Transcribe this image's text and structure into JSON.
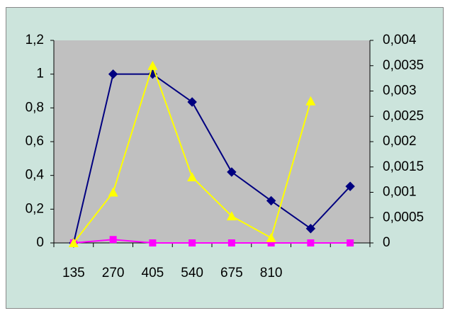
{
  "chart_data": {
    "type": "line",
    "categories": [
      "135",
      "270",
      "405",
      "540",
      "675",
      "810",
      null,
      null
    ],
    "ylim": [
      0,
      1.2
    ],
    "yticks": [
      0,
      {
        "value": 0.2,
        "label": "0,2"
      },
      {
        "value": 0.4,
        "label": "0,4"
      },
      {
        "value": 0.6,
        "label": "0,6"
      },
      {
        "value": 0.8,
        "label": "0,8"
      },
      1,
      {
        "value": 1.2,
        "label": "1,2"
      }
    ],
    "y2lim": [
      0,
      0.004
    ],
    "y2ticks": [
      0,
      {
        "value": 0.0005,
        "label": "0,0005"
      },
      {
        "value": 0.001,
        "label": "0,001"
      },
      {
        "value": 0.0015,
        "label": "0,0015"
      },
      {
        "value": 0.002,
        "label": "0,002"
      },
      {
        "value": 0.0025,
        "label": "0,0025"
      },
      {
        "value": 0.003,
        "label": "0,003"
      },
      {
        "value": 0.0035,
        "label": "0,0035"
      },
      {
        "value": 0.004,
        "label": "0,004"
      }
    ],
    "series": [
      {
        "color": "#000080",
        "marker": "diamond",
        "values": [
          0,
          1.0,
          1.0,
          0.835,
          0.42,
          0.25,
          0.085,
          0.335
        ]
      },
      {
        "color": "#ff00ff",
        "marker": "square",
        "values": [
          0,
          0.02,
          0,
          0,
          0,
          0,
          0,
          0
        ]
      },
      {
        "color": "#ffff00",
        "marker": "triangle",
        "axis": "y2",
        "values": [
          0,
          0.001,
          0.0035,
          0.0013,
          0.00053,
          0.0001,
          0.0028,
          null
        ]
      }
    ]
  }
}
